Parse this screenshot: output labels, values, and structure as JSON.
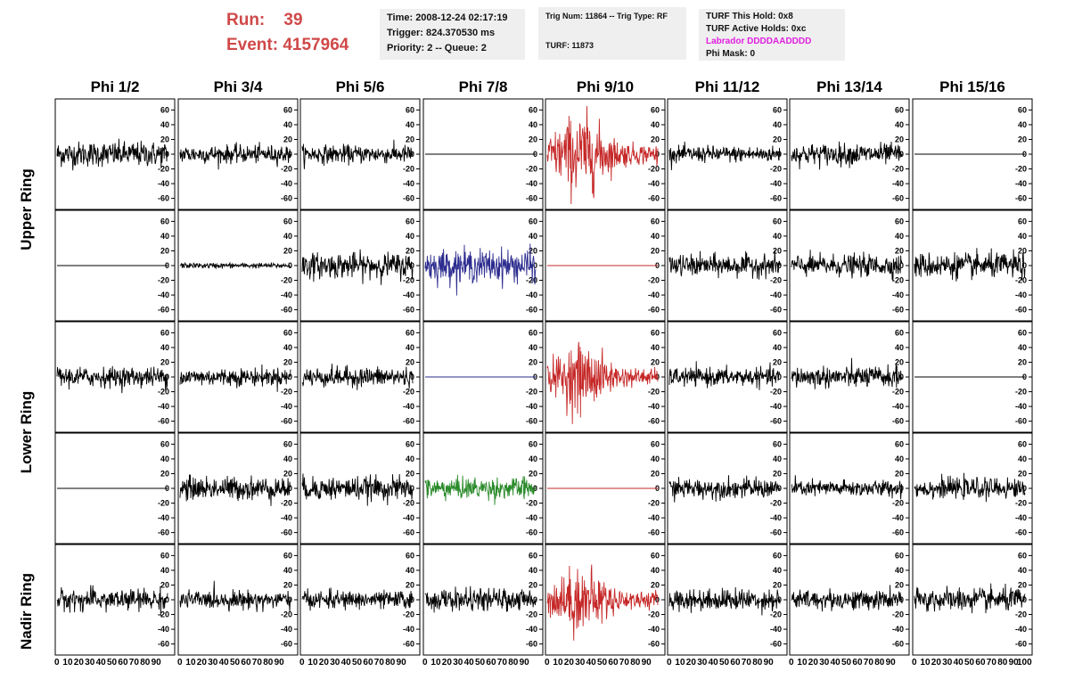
{
  "header": {
    "run_label": "Run:",
    "run_value": "39",
    "event_label": "Event:",
    "event_value": "4157964"
  },
  "info_time": {
    "time": "Time: 2008-12-24 02:17:19",
    "trigger": "Trigger: 824.370530 ms",
    "priority": "Priority: 2 -- Queue: 2"
  },
  "info_trig": {
    "trig": "Trig Num: 11864 -- Trig Type: RF",
    "turf": "TURF: 11873"
  },
  "info_turf": {
    "this_hold": "TURF This Hold: 0x8",
    "active_holds": "TURF Active Holds: 0xc",
    "labrador": "Labrador DDDDAADDDD",
    "phi_mask": "Phi Mask: 0"
  },
  "columns": [
    "Phi 1/2",
    "Phi 3/4",
    "Phi 5/6",
    "Phi 7/8",
    "Phi 9/10",
    "Phi 11/12",
    "Phi 13/14",
    "Phi 15/16"
  ],
  "ring_labels": [
    "Upper Ring",
    "Lower Ring",
    "Nadir Ring"
  ],
  "colors": {
    "black": "#000000",
    "red": "#c62828",
    "blue": "#2b2b8f",
    "green": "#2a8a2a"
  },
  "chart_data": {
    "type": "line",
    "description_rows": [
      "upper-1",
      "upper-2",
      "lower-1",
      "lower-2",
      "nadir"
    ],
    "x_ticks": [
      "0",
      "10",
      "20",
      "30",
      "40",
      "50",
      "60",
      "70",
      "80",
      "90",
      "100"
    ],
    "x_range": [
      0,
      100
    ],
    "y_ticks": [
      "60",
      "40",
      "20",
      "0",
      "-20",
      "-40",
      "-60"
    ],
    "y_range": [
      -75,
      75
    ],
    "panels": [
      [
        {
          "amp": 14,
          "color": "black"
        },
        {
          "amp": 10,
          "color": "black"
        },
        {
          "amp": 10,
          "color": "black"
        },
        {
          "amp": 0,
          "color": "black"
        },
        {
          "amp": 32,
          "color": "red",
          "envelope": true
        },
        {
          "amp": 9,
          "color": "black"
        },
        {
          "amp": 12,
          "color": "black"
        },
        {
          "amp": 0,
          "color": "black"
        }
      ],
      [
        {
          "amp": 0,
          "color": "black"
        },
        {
          "amp": 3,
          "color": "black"
        },
        {
          "amp": 14,
          "color": "black"
        },
        {
          "amp": 18,
          "color": "blue"
        },
        {
          "amp": 0,
          "color": "red"
        },
        {
          "amp": 12,
          "color": "black"
        },
        {
          "amp": 12,
          "color": "black"
        },
        {
          "amp": 14,
          "color": "black"
        }
      ],
      [
        {
          "amp": 11,
          "color": "black"
        },
        {
          "amp": 10,
          "color": "black"
        },
        {
          "amp": 11,
          "color": "black"
        },
        {
          "amp": 0,
          "color": "blue"
        },
        {
          "amp": 26,
          "color": "red",
          "envelope": true
        },
        {
          "amp": 10,
          "color": "black"
        },
        {
          "amp": 12,
          "color": "black"
        },
        {
          "amp": 0,
          "color": "black"
        }
      ],
      [
        {
          "amp": 0,
          "color": "black"
        },
        {
          "amp": 13,
          "color": "black"
        },
        {
          "amp": 13,
          "color": "black"
        },
        {
          "amp": 12,
          "color": "green"
        },
        {
          "amp": 0,
          "color": "red"
        },
        {
          "amp": 11,
          "color": "black"
        },
        {
          "amp": 9,
          "color": "black"
        },
        {
          "amp": 11,
          "color": "black"
        }
      ],
      [
        {
          "amp": 12,
          "color": "black"
        },
        {
          "amp": 10,
          "color": "black"
        },
        {
          "amp": 10,
          "color": "black"
        },
        {
          "amp": 12,
          "color": "black"
        },
        {
          "amp": 26,
          "color": "red",
          "envelope": true
        },
        {
          "amp": 12,
          "color": "black"
        },
        {
          "amp": 11,
          "color": "black"
        },
        {
          "amp": 13,
          "color": "black"
        }
      ]
    ]
  }
}
